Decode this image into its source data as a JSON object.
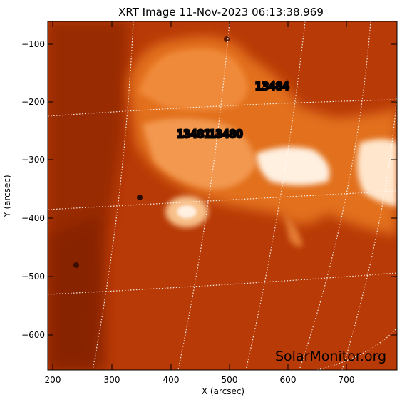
{
  "title": "XRT Image 11-Nov-2023 06:13:38.969",
  "xlabel": "X (arcsec)",
  "ylabel": "Y (arcsec)",
  "x_ticks": [
    "200",
    "300",
    "400",
    "500",
    "600",
    "700"
  ],
  "y_ticks": [
    "−100",
    "−200",
    "−300",
    "−400",
    "−500",
    "−600"
  ],
  "regions": [
    "13484",
    "13481",
    "13480"
  ],
  "watermark": "SolarMonitor.org",
  "colors": {
    "background": "#b83a06",
    "hot": "#fff2e6",
    "grid": "#ffffff"
  }
}
